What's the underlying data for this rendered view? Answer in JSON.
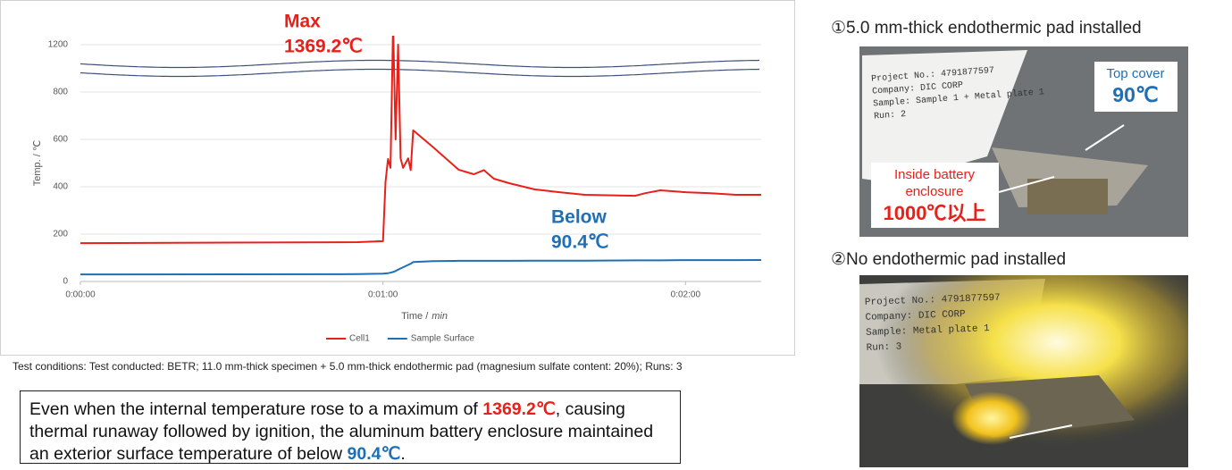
{
  "chart_data": {
    "type": "line",
    "y_label": "Temp. / ℃",
    "x_label": "Time /",
    "x_label_unit": "min",
    "x": [
      0,
      55,
      60,
      60.5,
      61,
      61.5,
      62,
      62.5,
      63,
      63.5,
      64,
      65,
      65.5,
      66,
      70,
      75,
      78,
      80,
      82,
      85,
      90,
      95,
      100,
      110,
      112,
      115,
      120,
      125,
      130,
      135
    ],
    "xlim": [
      0,
      135
    ],
    "xticks": [
      {
        "value": 0,
        "label": "0:00:00"
      },
      {
        "value": 60,
        "label": "0:01:00"
      },
      {
        "value": 120,
        "label": "0:02:00"
      }
    ],
    "ylim": [
      0,
      1200
    ],
    "yticks": [
      0,
      200,
      400,
      600,
      800,
      1200
    ],
    "y_break": [
      800,
      1200
    ],
    "grid": true,
    "series": [
      {
        "name": "Cell1",
        "color": "#e8201a",
        "values": [
          162,
          166,
          170,
          420,
          517,
          480,
          1369.2,
          600,
          1200,
          520,
          480,
          520,
          470,
          638,
          566,
          472,
          453,
          470,
          434,
          415,
          389,
          377,
          366,
          362,
          373,
          385,
          377,
          373,
          366,
          366
        ]
      },
      {
        "name": "Sample Surface",
        "color": "#1f6fb5",
        "values": [
          30,
          31,
          33,
          34,
          35,
          37,
          40,
          44,
          50,
          55,
          60,
          70,
          75,
          82,
          86,
          87,
          87,
          87,
          87,
          87,
          88,
          88,
          88,
          89,
          89,
          89,
          90,
          90,
          90,
          90.4
        ]
      }
    ],
    "annotations": [
      {
        "lines": [
          "Max",
          "1369.2℃"
        ],
        "color": "#e8201a"
      },
      {
        "lines": [
          "Below",
          "90.4℃"
        ],
        "color": "#1f6fb5"
      }
    ]
  },
  "footnote": "Test conditions: Test conducted: BETR; 11.0 mm-thick specimen + 5.0 mm-thick endothermic pad (magnesium sulfate content: 20%); Runs: 3",
  "summary": [
    "Even when the internal temperature rose to a maximum of ",
    "1369.2℃",
    ", causing thermal runaway followed by ignition, the aluminum battery enclosure maintained an exterior surface temperature of below ",
    "90.4℃",
    "."
  ],
  "photos": [
    {
      "caption": "①5.0 mm-thick endothermic pad installed",
      "paper": [
        "Project No.: 4791877597",
        "Company: DIC CORP",
        "Sample: Sample 1 + Metal plate 1",
        "Run: 2"
      ],
      "top_cover": {
        "label": "Top cover",
        "temp": "90℃"
      },
      "inside": {
        "label1": "Inside battery",
        "label2": "enclosure",
        "temp": "1000℃以上"
      }
    },
    {
      "caption": "②No endothermic pad installed",
      "paper": [
        "Project No.: 4791877597",
        "Company: DIC CORP",
        "Sample: Metal plate 1",
        "Run: 3"
      ]
    }
  ]
}
